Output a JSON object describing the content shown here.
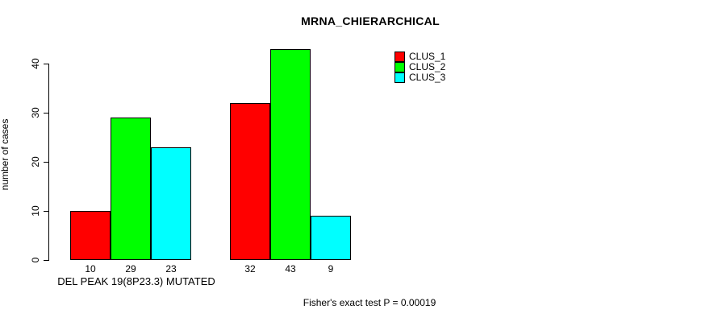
{
  "chart_data": {
    "type": "bar",
    "title": "MRNA_CHIERARCHICAL",
    "xlabel": "",
    "ylabel": "number of cases",
    "yticks": [
      0,
      10,
      20,
      30,
      40
    ],
    "ylim": [
      0,
      43
    ],
    "grid": false,
    "legend_position": "top-right",
    "categories": [
      "DEL PEAK 19(8P23.3) MUTATED",
      ""
    ],
    "series": [
      {
        "name": "CLUS_1",
        "color": "#ff0000",
        "values": [
          10,
          32
        ]
      },
      {
        "name": "CLUS_2",
        "color": "#00ff00",
        "values": [
          29,
          43
        ]
      },
      {
        "name": "CLUS_3",
        "color": "#00ffff",
        "values": [
          23,
          9
        ]
      }
    ],
    "bar_value_labels": [
      [
        "10",
        "29",
        "23"
      ],
      [
        "32",
        "43",
        "9"
      ]
    ],
    "footnote": "Fisher's exact test P = 0.00019"
  }
}
